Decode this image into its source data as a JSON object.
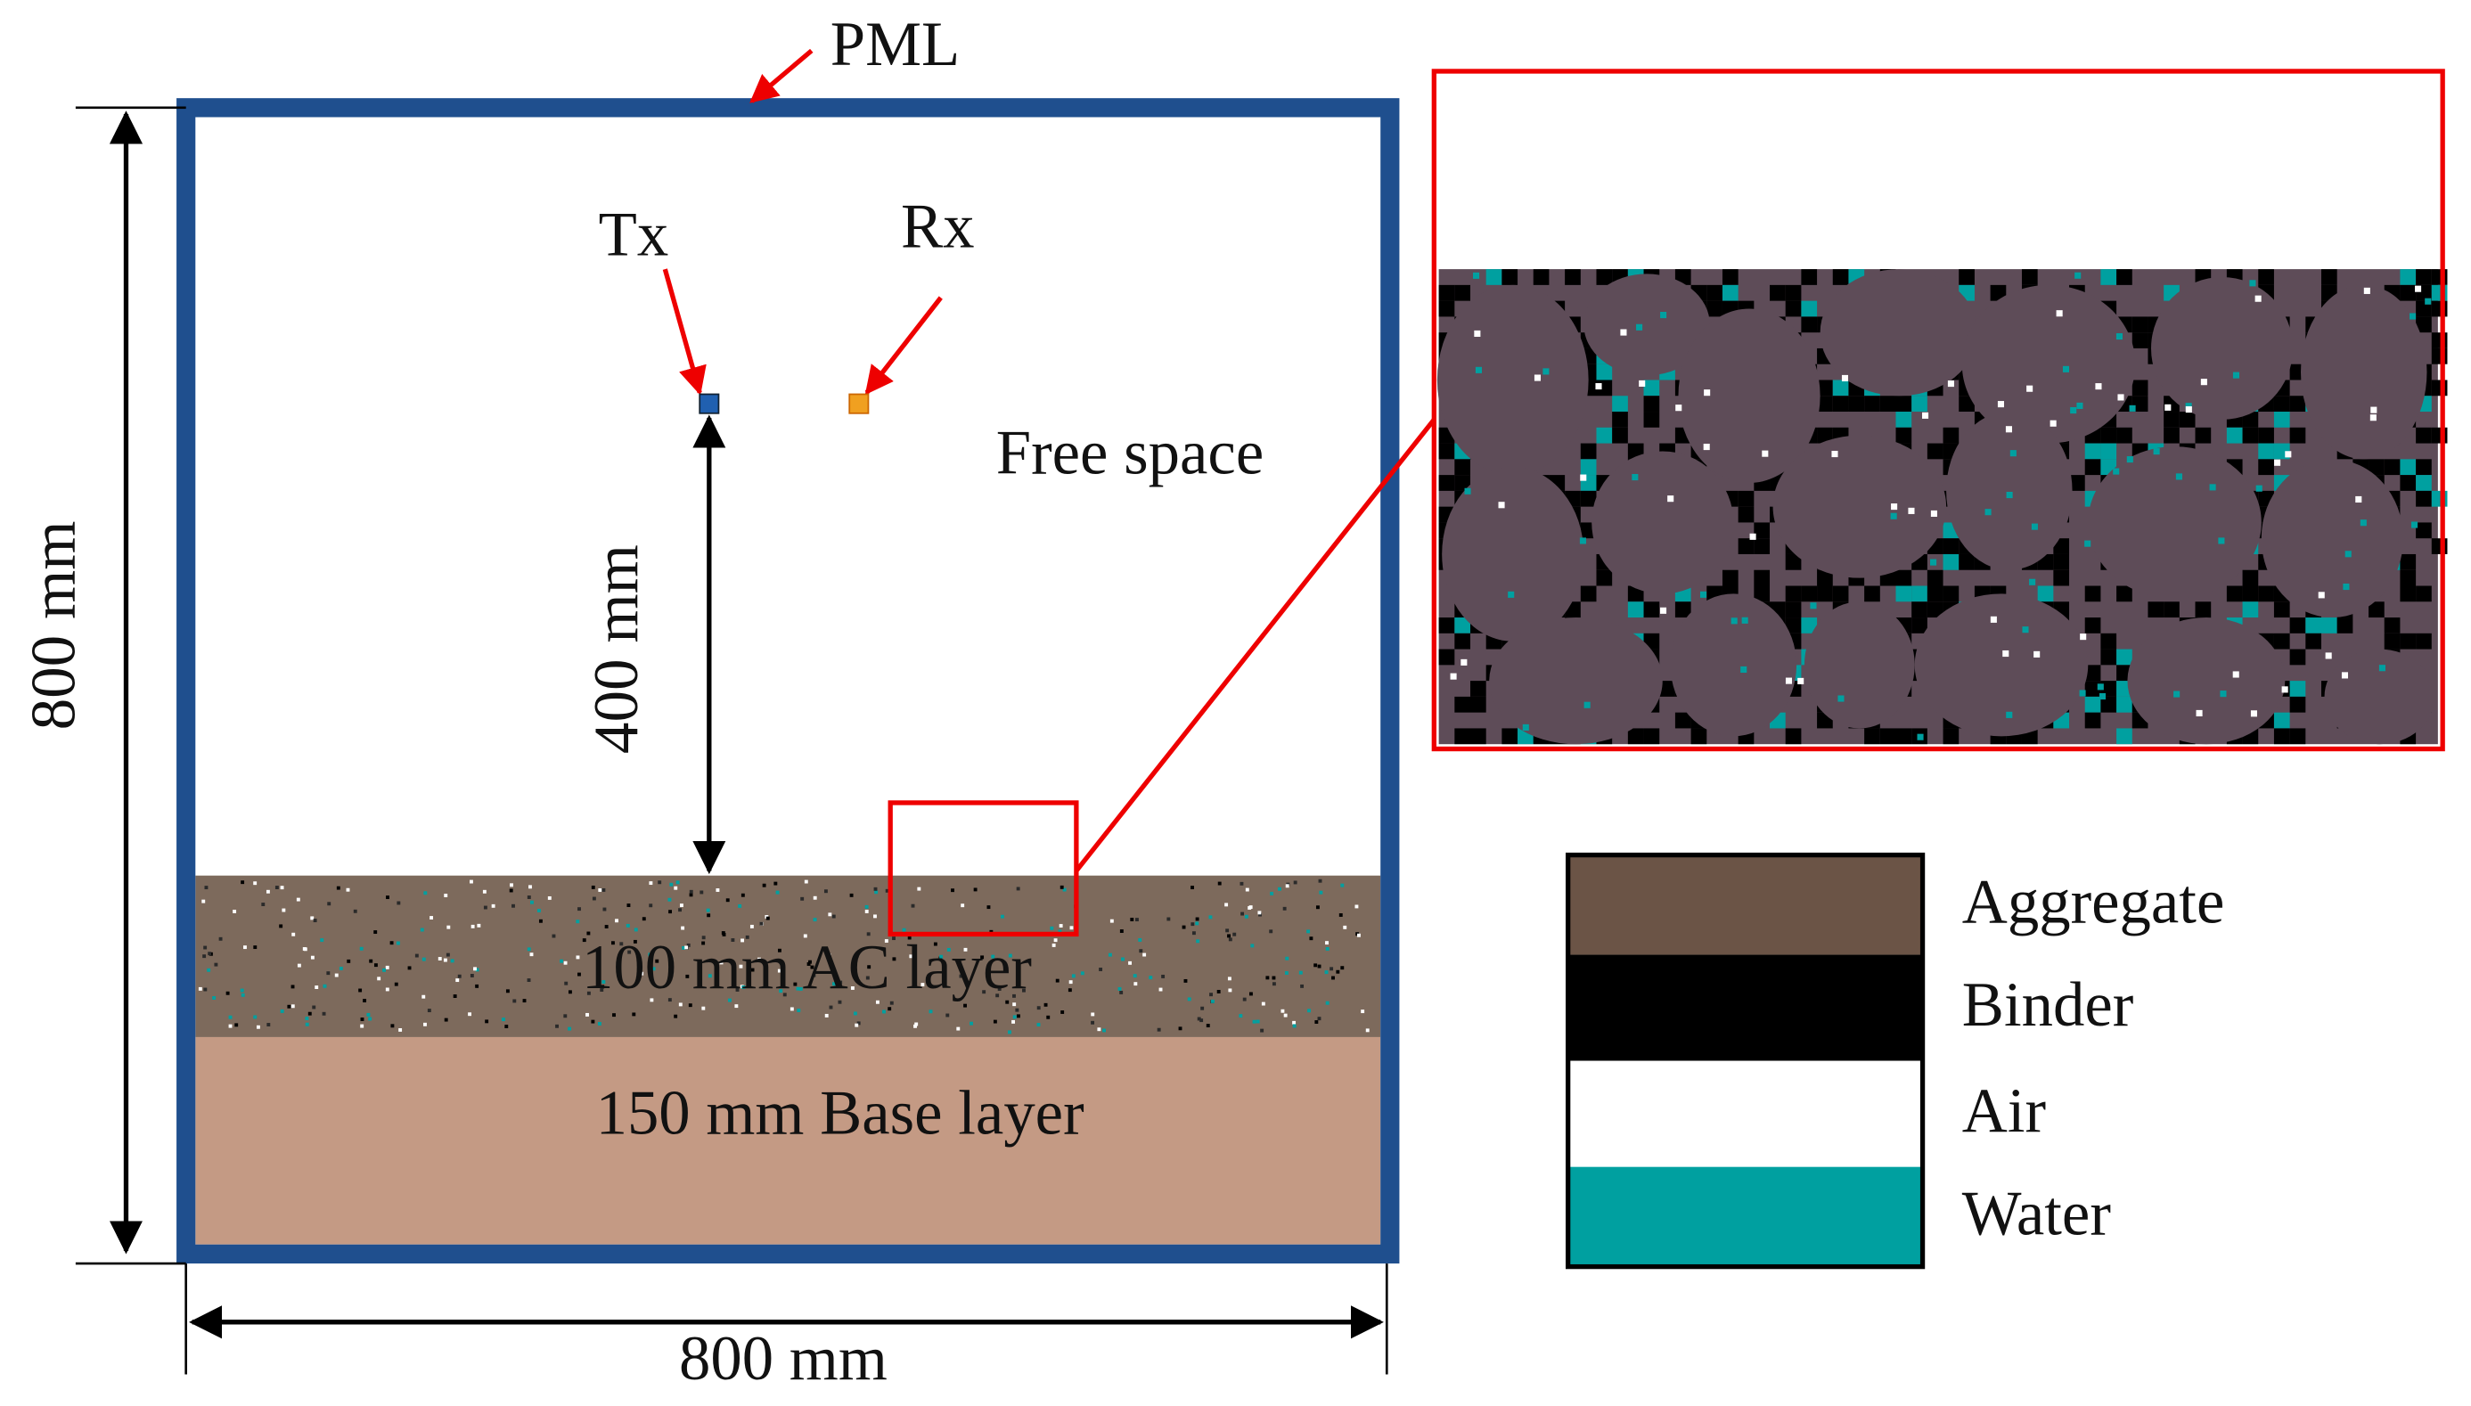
{
  "labels": {
    "pml": "PML",
    "tx": "Tx",
    "rx": "Rx",
    "free_space": "Free space",
    "height_source": "400 mm",
    "domain_height": "800 mm",
    "domain_width": "800 mm",
    "ac_layer": "100 mm AC layer",
    "base_layer": "150 mm Base layer"
  },
  "legend": [
    {
      "label": "Aggregate",
      "color": "#6b5446"
    },
    {
      "label": "Binder",
      "color": "#000000"
    },
    {
      "label": "Air",
      "color": "#ffffff"
    },
    {
      "label": "Water",
      "color": "#00a0a0"
    }
  ]
}
